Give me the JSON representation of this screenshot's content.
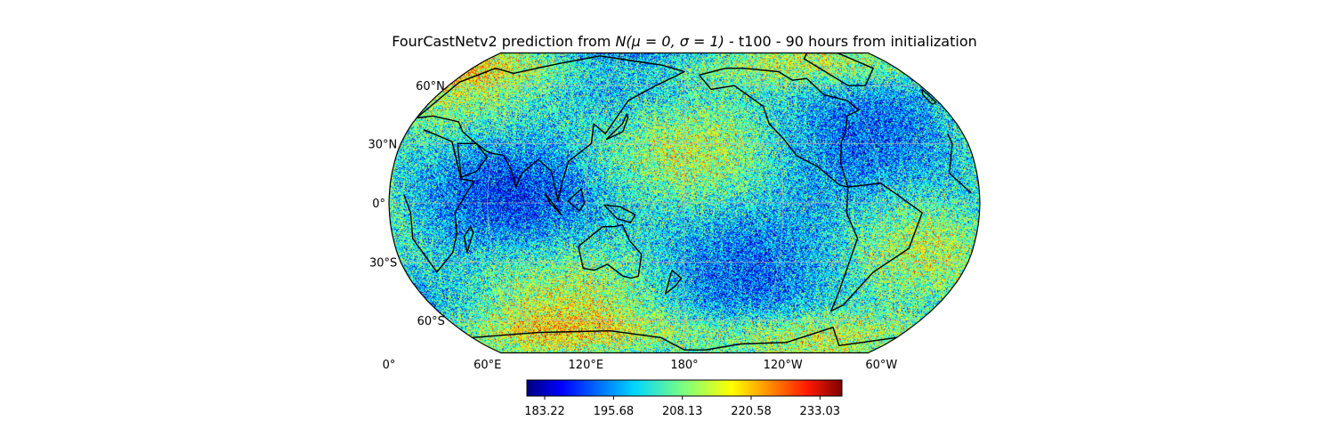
{
  "title_prefix": "FourCastNetv2 prediction from ",
  "title_math": "N(μ = 0, σ = 1)",
  "title_suffix": " - t100 - 90 hours from initialization",
  "map": {
    "projection": "robinson",
    "central_longitude": 180,
    "variable_field": "t100",
    "lat_labels": [
      "60°N",
      "30°N",
      "0°",
      "30°S",
      "60°S"
    ],
    "lat_values": [
      60,
      30,
      0,
      -30,
      -60
    ],
    "lon_labels": [
      "0°",
      "60°E",
      "120°E",
      "180°",
      "120°W",
      "60°W"
    ],
    "lon_values": [
      0,
      60,
      120,
      180,
      240,
      300
    ],
    "gridlines": true,
    "coastlines": true
  },
  "colorbar": {
    "colormap": "jet",
    "min": 180,
    "max": 237,
    "tick_values": [
      183.22,
      195.68,
      208.13,
      220.58,
      233.03
    ],
    "tick_labels": [
      "183.22",
      "195.68",
      "208.13",
      "220.58",
      "233.03"
    ],
    "orientation": "horizontal"
  },
  "colors": {
    "jet_stops": [
      "#00007f",
      "#0000ff",
      "#007fff",
      "#00ffff",
      "#7fff7f",
      "#ffff00",
      "#ff7f00",
      "#ff0000",
      "#7f0000"
    ],
    "coastline": "#000000",
    "gridline": "#b8b8b8"
  }
}
